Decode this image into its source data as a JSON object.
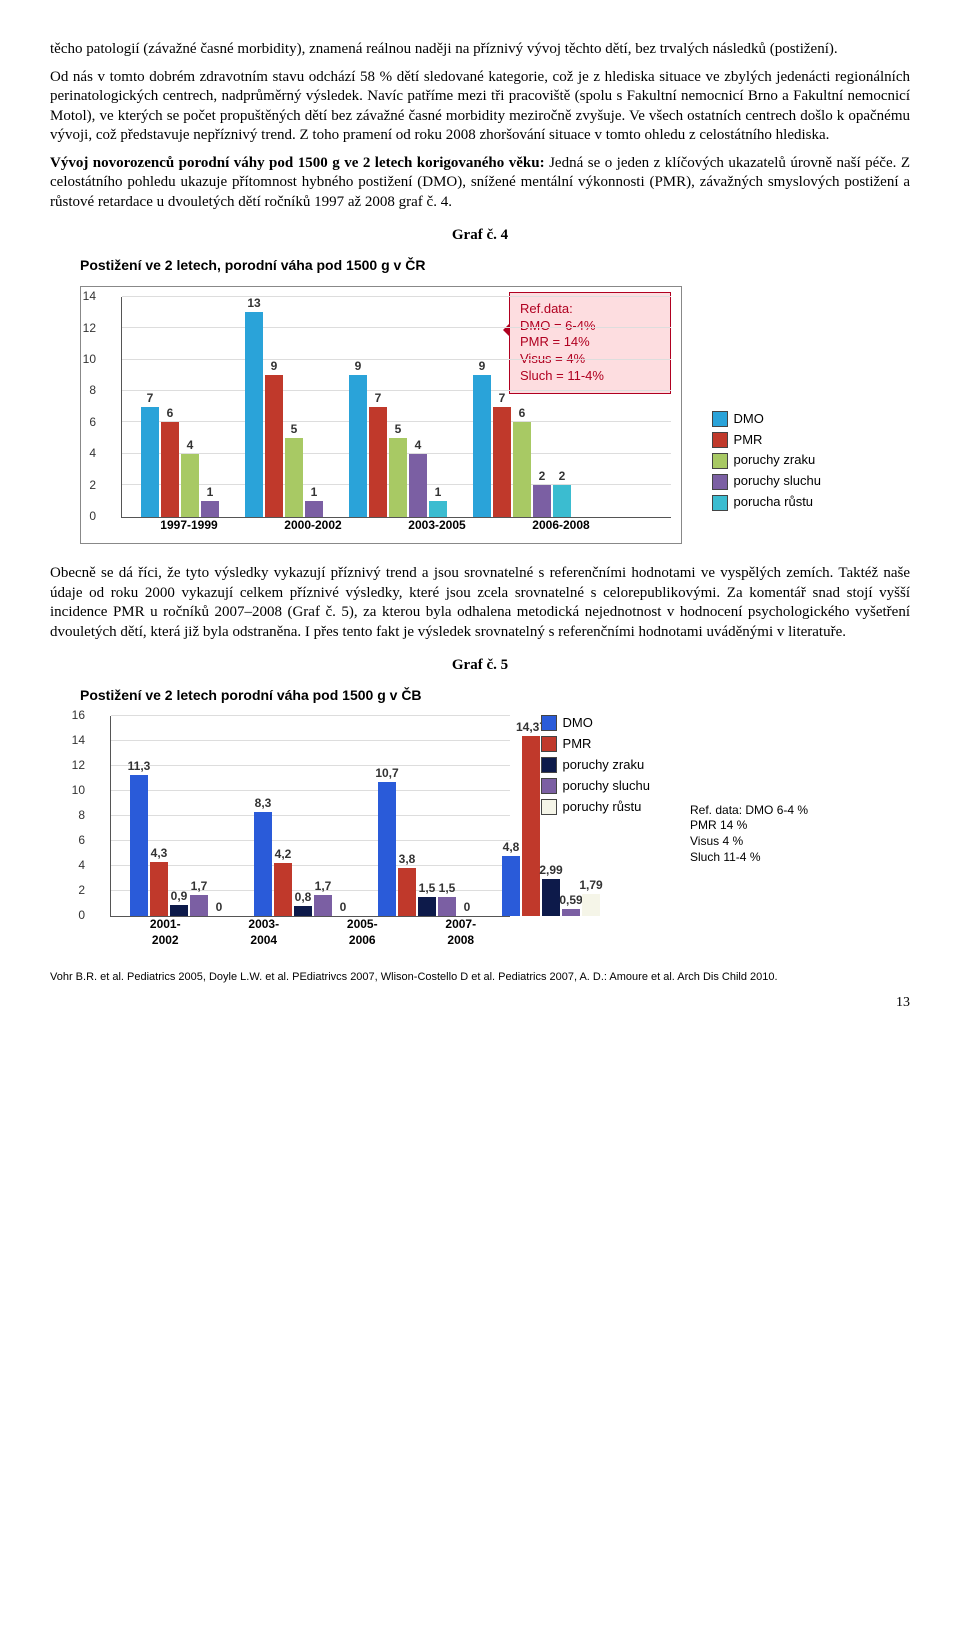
{
  "para1": "těcho patologií (závažné časné morbidity), znamená reálnou naději na příznivý vývoj těchto dětí, bez trvalých následků (postižení).",
  "para2": "Od nás v tomto dobrém zdravotním stavu odchází 58 % dětí sledované kategorie, což je z hlediska situace ve zbylých jedenácti regionálních perinatologických centrech, nadprůměrný výsledek. Navíc patříme mezi tři pracoviště (spolu s Fakultní nemocnicí Brno a Fakultní nemocnicí Motol), ve kterých se počet propuštěných dětí bez závažné časné morbidity meziročně zvyšuje. Ve všech ostatních centrech došlo k opačnému vývoji, což představuje nepříznivý trend. Z toho pramení od roku 2008 zhoršování situace v tomto ohledu z celostátního hlediska.",
  "heading1": "Vývoj novorozenců porodní váhy pod 1500 g ve 2 letech korigovaného věku:",
  "para3": "Jedná se o jeden z klíčových ukazatelů úrovně naší péče. Z celostátního pohledu ukazuje přítomnost hybného postižení (DMO), snížené mentální výkonnosti (PMR), závažných smyslových postižení a růstové retardace u dvouletých dětí ročníků 1997 až 2008 graf č. 4.",
  "graf4_title": "Graf č. 4",
  "graf4_sub": "Postižení ve 2 letech, porodní váha pod 1500 g v ČR",
  "refbox": {
    "l1": "Ref.data:",
    "l2": "DMO = 6-4%",
    "l3": "PMR = 14%",
    "l4": "Visus = 4%",
    "l5": "Sluch = 11-4%"
  },
  "chart4": {
    "ymax": 14,
    "yticks": [
      0,
      2,
      4,
      6,
      8,
      10,
      12,
      14
    ],
    "categories": [
      "1997-1999",
      "2000-2002",
      "2003-2005",
      "2006-2008"
    ],
    "series": [
      {
        "name": "DMO",
        "color": "#2aa3d9"
      },
      {
        "name": "PMR",
        "color": "#c0392b"
      },
      {
        "name": "poruchy zraku",
        "color": "#a8c964"
      },
      {
        "name": "poruchy sluchu",
        "color": "#7b5fa3"
      },
      {
        "name": "porucha růstu",
        "color": "#3bbcd0"
      }
    ],
    "data": [
      [
        7,
        6,
        4,
        1,
        null
      ],
      [
        13,
        9,
        5,
        1,
        null
      ],
      [
        9,
        7,
        5,
        4,
        1
      ],
      [
        9,
        7,
        6,
        2,
        2
      ]
    ]
  },
  "para4": "Obecně se dá říci, že tyto výsledky vykazují příznivý trend a jsou srovnatelné s referenčními hodnotami ve vyspělých zemích. Taktéž naše údaje od roku 2000 vykazují celkem příznivé výsledky, které jsou zcela srovnatelné s celorepublikovými. Za komentář snad stojí vyšší incidence PMR u ročníků 2007–2008 (Graf č. 5), za kterou byla odhalena metodická nejednotnost v hodnocení psychologického vyšetření dvouletých dětí, která již byla odstraněna. I přes tento fakt je výsledek srovnatelný s referenčními hodnotami uváděnými v literatuře.",
  "graf5_title": "Graf č. 5",
  "graf5_sub": "Postižení ve 2 letech porodní váha pod 1500 g v ČB",
  "chart5": {
    "ymax": 16,
    "yticks": [
      0,
      2,
      4,
      6,
      8,
      10,
      12,
      14,
      16
    ],
    "categories": [
      "2001-\n2002",
      "2003-\n2004",
      "2005-\n2006",
      "2007-\n2008"
    ],
    "series": [
      {
        "name": "DMO",
        "color": "#2a5bd9"
      },
      {
        "name": "PMR",
        "color": "#c0392b"
      },
      {
        "name": "poruchy zraku",
        "color": "#0d1a4a"
      },
      {
        "name": "poruchy sluchu",
        "color": "#7b5fa3"
      },
      {
        "name": "poruchy růstu",
        "color": "#f5f5e8"
      }
    ],
    "data": [
      [
        11.3,
        4.3,
        0.9,
        1.7,
        0
      ],
      [
        8.3,
        4.2,
        0.8,
        1.7,
        0
      ],
      [
        10.7,
        3.8,
        1.5,
        1.5,
        0
      ],
      [
        4.8,
        14.37,
        2.99,
        0.59,
        1.79
      ]
    ],
    "labels": [
      [
        "11,3",
        "4,3",
        "0,9",
        "1,7",
        "0"
      ],
      [
        "8,3",
        "4,2",
        "0,8",
        "1,7",
        "0"
      ],
      [
        "10,7",
        "3,8",
        "1,5",
        "1,5",
        "0"
      ],
      [
        "4,8",
        "14,37",
        "2,99",
        "0,59",
        "1,79"
      ]
    ]
  },
  "side_ref": {
    "l1": "Ref. data: DMO 6-4 %",
    "l2": "PMR 14 %",
    "l3": "Visus 4 %",
    "l4": "Sluch 11-4 %"
  },
  "footer": "Vohr B.R. et al. Pediatrics 2005, Doyle L.W. et al. PEdiatrivcs 2007, Wlison-Costello D et al. Pediatrics 2007, A. D.: Amoure et al. Arch Dis Child 2010.",
  "page": "13"
}
